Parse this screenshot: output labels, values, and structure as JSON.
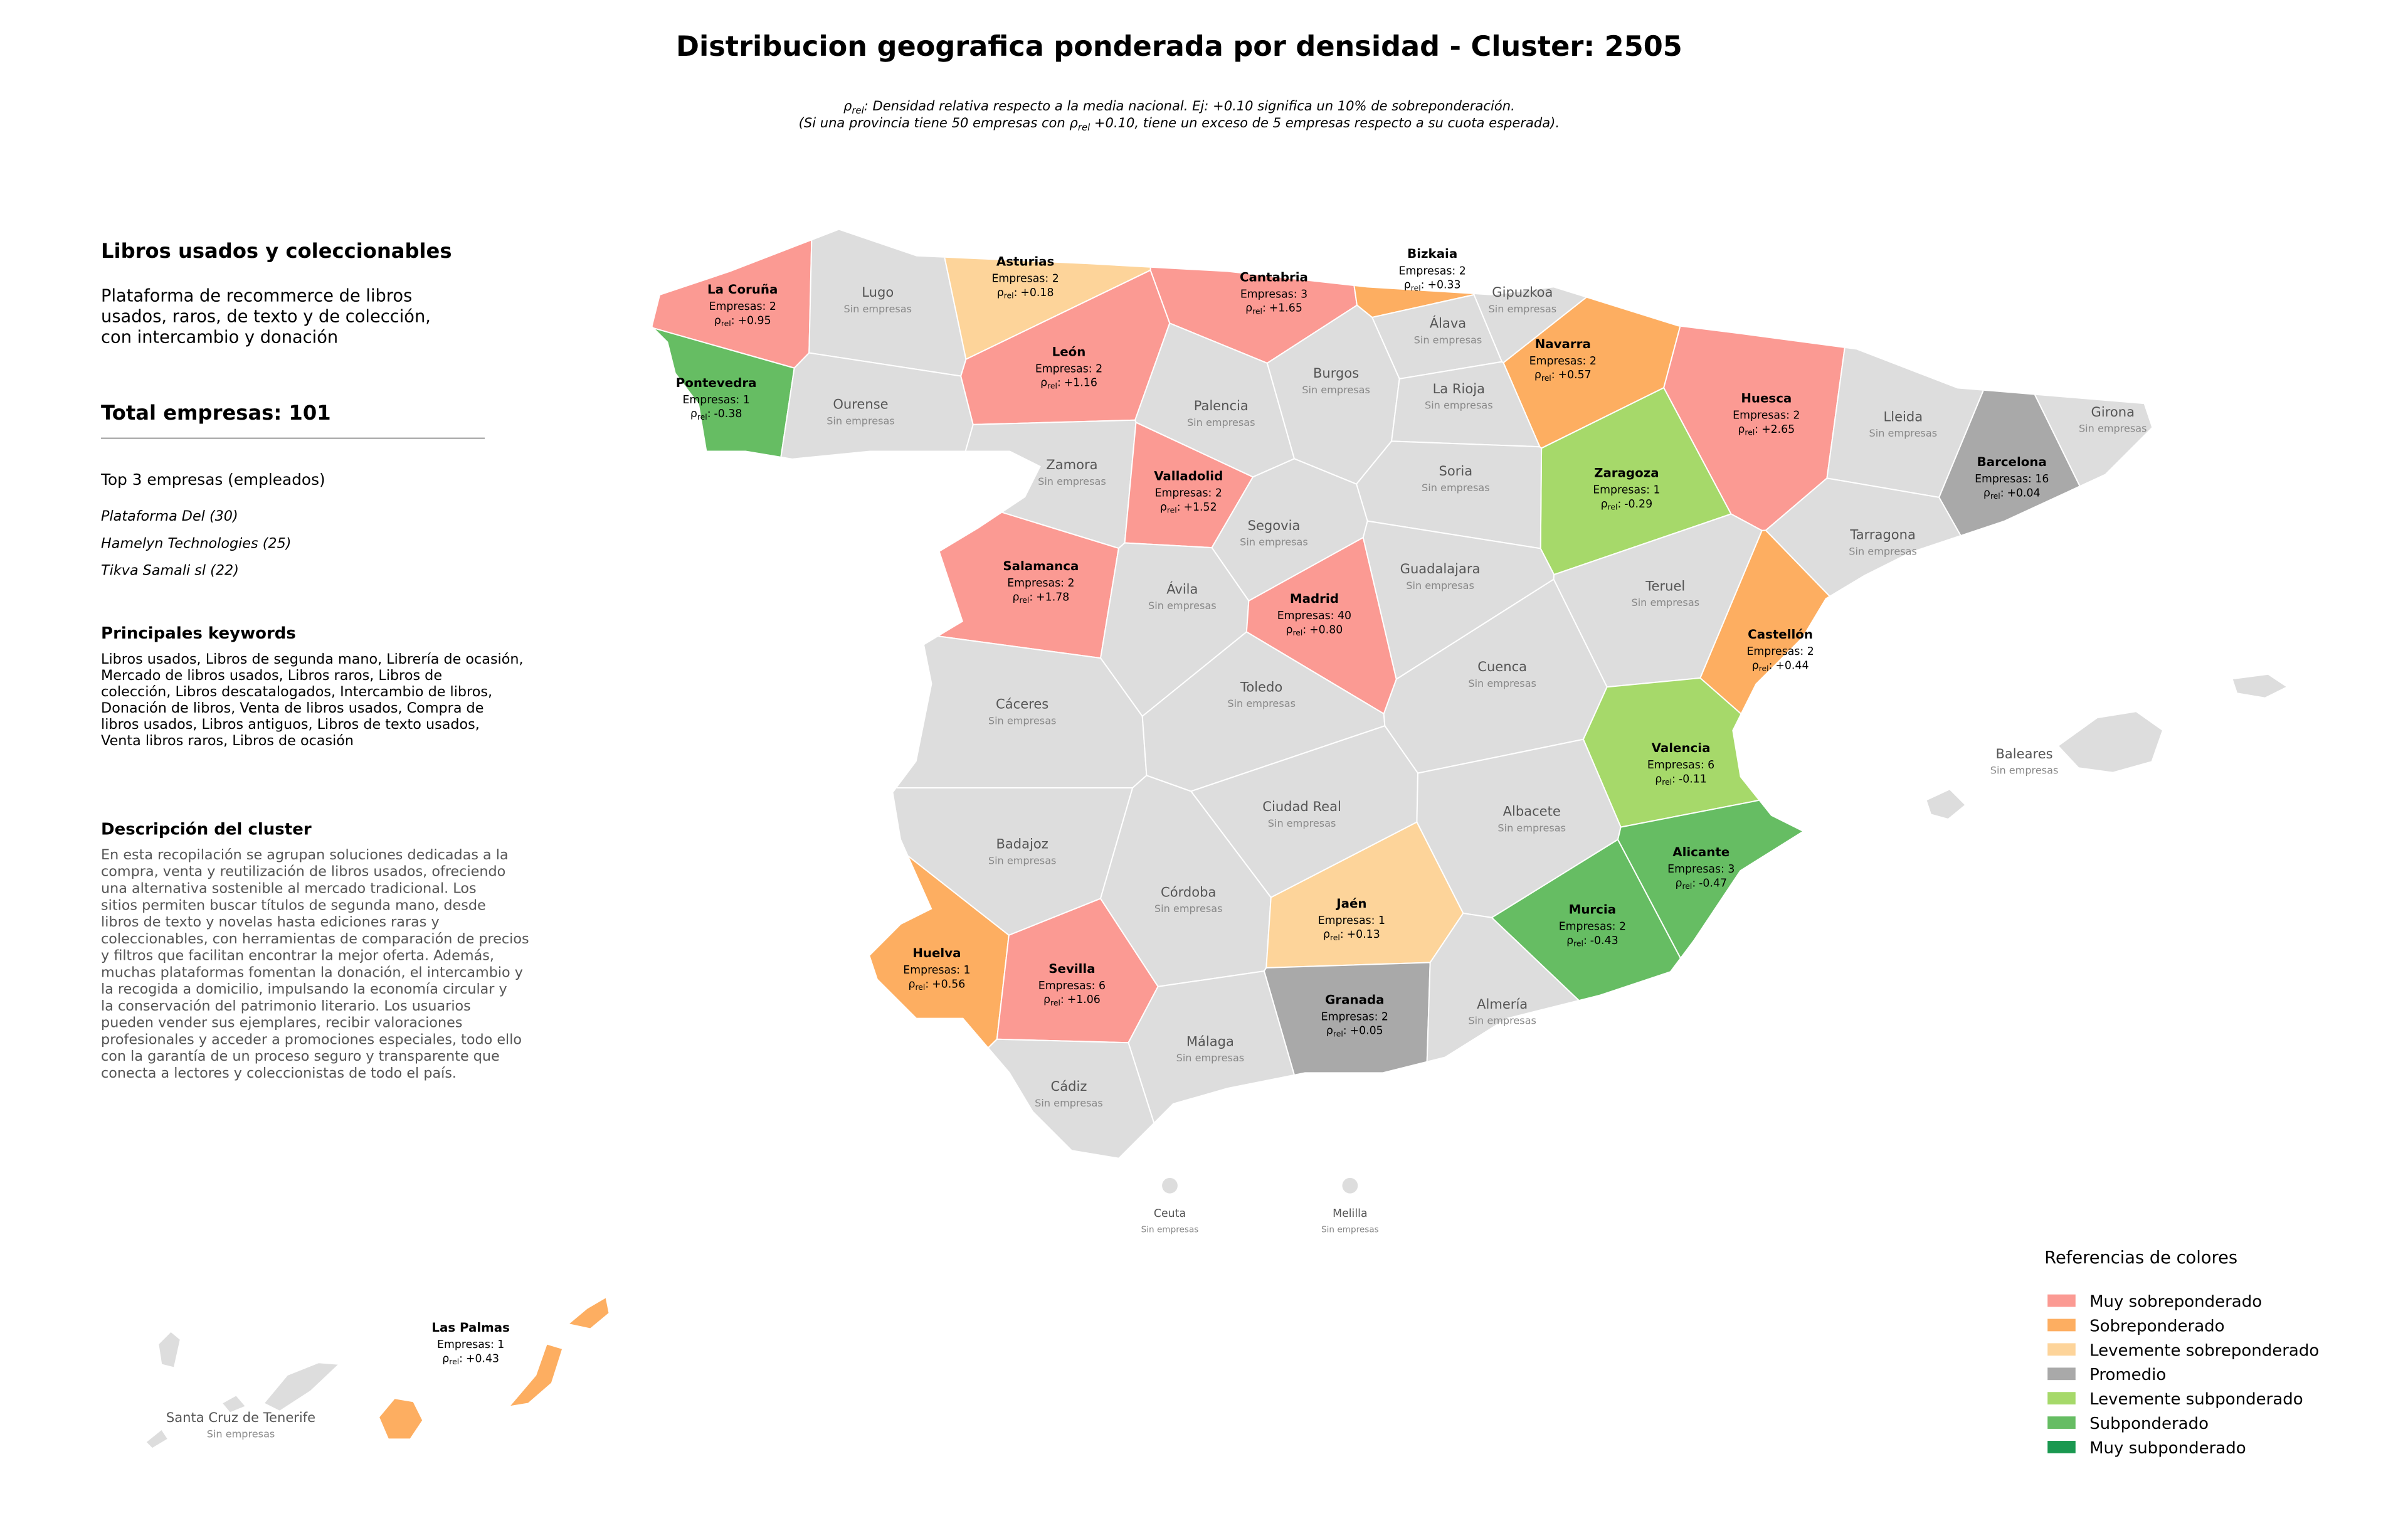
{
  "header": {
    "title": "Distribucion geografica ponderada por densidad - Cluster: 2505",
    "subtitle_line1": {
      "symbol": "ρ",
      "subscript": "rel",
      "text": ": Densidad relativa respecto a la media nacional. Ej: +0.10 significa un 10% de sobreponderación."
    },
    "subtitle_line2": {
      "before": "(Si una provincia tiene 50 empresas con ",
      "symbol": "ρ",
      "subscript": "rel",
      "after": " +0.10, tiene un exceso de 5 empresas respecto a su cuota esperada)."
    }
  },
  "panel": {
    "title": "Libros usados y coleccionables",
    "description": [
      "Plataforma de recommerce de libros",
      "usados, raros, de texto y de colección,",
      "con intercambio y donación"
    ],
    "total": "Total empresas: 101",
    "top_title": "Top 3 empresas (empleados)",
    "top": [
      "Plataforma Del (30)",
      "Hamelyn Technologies (25)",
      "Tikva Samali sl (22)"
    ],
    "keywords_title": "Principales keywords",
    "keywords": [
      "Libros usados, Libros de segunda mano, Librería de ocasión,",
      "Mercado de libros usados, Libros raros, Libros de",
      "colección, Libros descatalogados, Intercambio de libros,",
      "Donación de libros, Venta de libros usados, Compra de",
      "libros usados, Libros antiguos, Libros de texto usados,",
      "Venta libros raros, Libros de ocasión"
    ],
    "cluster_title": "Descripción del cluster",
    "cluster_text": [
      "En esta recopilación se agrupan soluciones dedicadas a la",
      "compra, venta y reutilización de libros usados, ofreciendo",
      "una alternativa sostenible al mercado tradicional. Los",
      "sitios permiten buscar títulos de segunda mano, desde",
      "libros de texto y novelas hasta ediciones raras y",
      "coleccionables, con herramientas de comparación de precios",
      "y filtros que facilitan encontrar la mejor oferta. Además,",
      "muchas plataformas fomentan la donación, el intercambio y",
      "la recogida a domicilio, impulsando la economía circular y",
      "la conservación del patrimonio literario. Los usuarios",
      "pueden vender sus ejemplares, recibir valoraciones",
      "profesionales y acceder a promociones especiales, todo ello",
      "con la garantía de un proceso seguro y transparente que",
      "conecta a lectores y coleccionistas de todo el país."
    ]
  },
  "map": {
    "rho": {
      "symbol": "ρ",
      "subscript": "rel",
      "suffix": ":"
    },
    "provinces": [
      {
        "name": "La Coruña",
        "color": "#fb9a93",
        "empresas": "Empresas: 2",
        "rho": "+0.95"
      },
      {
        "name": "Lugo",
        "color": "#dddddd",
        "status": "Sin empresas"
      },
      {
        "name": "Asturias",
        "color": "#fdd49a",
        "empresas": "Empresas: 2",
        "rho": "+0.18"
      },
      {
        "name": "Cantabria",
        "color": "#fb9a93",
        "empresas": "Empresas: 3",
        "rho": "+1.65"
      },
      {
        "name": "Bizkaia",
        "color": "#fdae61",
        "empresas": "Empresas: 2",
        "rho": "+0.33"
      },
      {
        "name": "Gipuzkoa",
        "color": "#dddddd",
        "status": "Sin empresas"
      },
      {
        "name": "Álava",
        "color": "#dddddd",
        "status": "Sin empresas"
      },
      {
        "name": "Navarra",
        "color": "#fdae61",
        "empresas": "Empresas: 2",
        "rho": "+0.57"
      },
      {
        "name": "Pontevedra",
        "color": "#66bd63",
        "empresas": "Empresas: 1",
        "rho": "-0.38"
      },
      {
        "name": "Ourense",
        "color": "#dddddd",
        "status": "Sin empresas"
      },
      {
        "name": "León",
        "color": "#fb9a93",
        "empresas": "Empresas: 2",
        "rho": "+1.16"
      },
      {
        "name": "Palencia",
        "color": "#dddddd",
        "status": "Sin empresas"
      },
      {
        "name": "Burgos",
        "color": "#dddddd",
        "status": "Sin empresas"
      },
      {
        "name": "La Rioja",
        "color": "#dddddd",
        "status": "Sin empresas"
      },
      {
        "name": "Huesca",
        "color": "#fb9a93",
        "empresas": "Empresas: 2",
        "rho": "+2.65"
      },
      {
        "name": "Lleida",
        "color": "#dddddd",
        "status": "Sin empresas"
      },
      {
        "name": "Girona",
        "color": "#dddddd",
        "status": "Sin empresas"
      },
      {
        "name": "Barcelona",
        "color": "#a9a9a9",
        "empresas": "Empresas: 16",
        "rho": "+0.04"
      },
      {
        "name": "Tarragona",
        "color": "#dddddd",
        "status": "Sin empresas"
      },
      {
        "name": "Zaragoza",
        "color": "#a6d96a",
        "empresas": "Empresas: 1",
        "rho": "-0.29"
      },
      {
        "name": "Zamora",
        "color": "#dddddd",
        "status": "Sin empresas"
      },
      {
        "name": "Valladolid",
        "color": "#fb9a93",
        "empresas": "Empresas: 2",
        "rho": "+1.52"
      },
      {
        "name": "Soria",
        "color": "#dddddd",
        "status": "Sin empresas"
      },
      {
        "name": "Segovia",
        "color": "#dddddd",
        "status": "Sin empresas"
      },
      {
        "name": "Salamanca",
        "color": "#fb9a93",
        "empresas": "Empresas: 2",
        "rho": "+1.78"
      },
      {
        "name": "Ávila",
        "color": "#dddddd",
        "status": "Sin empresas"
      },
      {
        "name": "Madrid",
        "color": "#fb9a93",
        "empresas": "Empresas: 40",
        "rho": "+0.80"
      },
      {
        "name": "Guadalajara",
        "color": "#dddddd",
        "status": "Sin empresas"
      },
      {
        "name": "Teruel",
        "color": "#dddddd",
        "status": "Sin empresas"
      },
      {
        "name": "Castellón",
        "color": "#fdae61",
        "empresas": "Empresas: 2",
        "rho": "+0.44"
      },
      {
        "name": "Cáceres",
        "color": "#dddddd",
        "status": "Sin empresas"
      },
      {
        "name": "Toledo",
        "color": "#dddddd",
        "status": "Sin empresas"
      },
      {
        "name": "Cuenca",
        "color": "#dddddd",
        "status": "Sin empresas"
      },
      {
        "name": "Valencia",
        "color": "#a6d96a",
        "empresas": "Empresas: 6",
        "rho": "-0.11"
      },
      {
        "name": "Badajoz",
        "color": "#dddddd",
        "status": "Sin empresas"
      },
      {
        "name": "Ciudad Real",
        "color": "#dddddd",
        "status": "Sin empresas"
      },
      {
        "name": "Albacete",
        "color": "#dddddd",
        "status": "Sin empresas"
      },
      {
        "name": "Alicante",
        "color": "#66bd63",
        "empresas": "Empresas: 3",
        "rho": "-0.47"
      },
      {
        "name": "Córdoba",
        "color": "#dddddd",
        "status": "Sin empresas"
      },
      {
        "name": "Jaén",
        "color": "#fdd49a",
        "empresas": "Empresas: 1",
        "rho": "+0.13"
      },
      {
        "name": "Murcia",
        "color": "#66bd63",
        "empresas": "Empresas: 2",
        "rho": "-0.43"
      },
      {
        "name": "Huelva",
        "color": "#fdae61",
        "empresas": "Empresas: 1",
        "rho": "+0.56"
      },
      {
        "name": "Sevilla",
        "color": "#fb9a93",
        "empresas": "Empresas: 6",
        "rho": "+1.06"
      },
      {
        "name": "Granada",
        "color": "#a9a9a9",
        "empresas": "Empresas: 2",
        "rho": "+0.05"
      },
      {
        "name": "Almería",
        "color": "#dddddd",
        "status": "Sin empresas"
      },
      {
        "name": "Málaga",
        "color": "#dddddd",
        "status": "Sin empresas"
      },
      {
        "name": "Cádiz",
        "color": "#dddddd",
        "status": "Sin empresas"
      },
      {
        "name": "Baleares",
        "color": "#dddddd",
        "status": "Sin empresas"
      },
      {
        "name": "Ceuta",
        "color": "#dddddd",
        "status": "Sin empresas"
      },
      {
        "name": "Melilla",
        "color": "#dddddd",
        "status": "Sin empresas"
      },
      {
        "name": "Las Palmas",
        "color": "#fdae61",
        "empresas": "Empresas: 1",
        "rho": "+0.43"
      },
      {
        "name": "Santa Cruz de Tenerife",
        "color": "#dddddd",
        "status": "Sin empresas"
      }
    ]
  },
  "legend": {
    "title": "Referencias de colores",
    "items": [
      {
        "name": "Muy sobreponderado",
        "color": "#fb9a93"
      },
      {
        "name": "Sobreponderado",
        "color": "#fdae61"
      },
      {
        "name": "Levemente sobreponderado",
        "color": "#fdd49a"
      },
      {
        "name": "Promedio",
        "color": "#a9a9a9"
      },
      {
        "name": "Levemente subponderado",
        "color": "#a6d96a"
      },
      {
        "name": "Subponderado",
        "color": "#66bd63"
      },
      {
        "name": "Muy subponderado",
        "color": "#1a9850"
      }
    ]
  }
}
